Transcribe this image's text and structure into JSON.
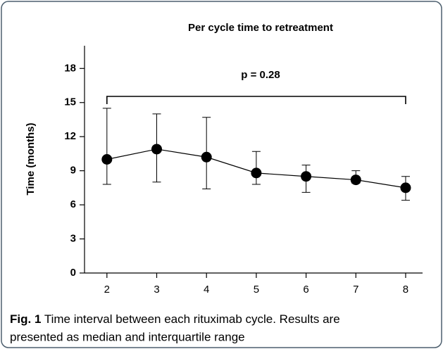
{
  "chart_data": {
    "type": "line",
    "title": "Per cycle time to retreatment",
    "y_label": "Time (months)",
    "annotation": "p = 0.28",
    "x": [
      2,
      3,
      4,
      5,
      6,
      7,
      8
    ],
    "values": [
      10.0,
      10.9,
      10.2,
      8.8,
      8.5,
      8.2,
      7.5
    ],
    "lower": [
      7.8,
      8.0,
      7.4,
      7.8,
      7.1,
      7.9,
      6.4
    ],
    "upper": [
      14.5,
      14.0,
      13.7,
      10.7,
      9.5,
      9.0,
      8.5
    ],
    "color": "#000000",
    "xlim": [
      1.55,
      8.34
    ],
    "xticks": [
      2,
      3,
      4,
      5,
      6,
      7,
      8
    ],
    "ylim": [
      0,
      20
    ],
    "yticks": [
      0,
      3,
      6,
      9,
      12,
      15,
      18
    ]
  },
  "caption": {
    "label": "Fig. 1",
    "lines": [
      "Time interval between each rituximab cycle. Results are",
      "presented as median and interquartile range"
    ]
  }
}
